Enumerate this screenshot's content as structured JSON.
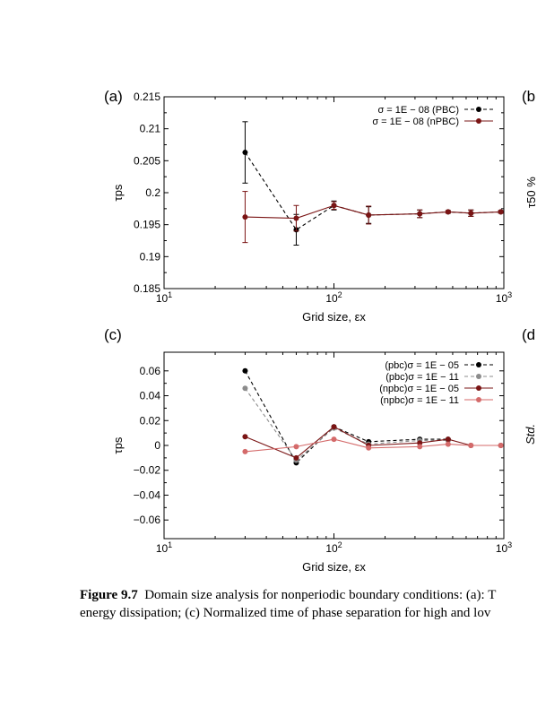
{
  "chart_data": [
    {
      "type": "line",
      "panel_label": "(a)",
      "xlabel": "Grid size, εx",
      "ylabel": "τps",
      "xscale": "log",
      "xlim": [
        10,
        1000
      ],
      "ylim": [
        0.185,
        0.215
      ],
      "yticks": [
        "0.185",
        "0.19",
        "0.195",
        "0.2",
        "0.205",
        "0.21",
        "0.215"
      ],
      "ytick_values": [
        0.185,
        0.19,
        0.195,
        0.2,
        0.205,
        0.21,
        0.215
      ],
      "xticks": [
        {
          "base": "10",
          "exp": "1"
        },
        {
          "base": "10",
          "exp": "2"
        },
        {
          "base": "10",
          "exp": "3"
        }
      ],
      "legend_position": "top-right",
      "series": [
        {
          "name": "σ = 1E − 08 (PBC)",
          "color": "#000000",
          "dashed": true,
          "x": [
            30,
            60,
            100,
            160,
            320,
            470,
            640,
            960
          ],
          "y": [
            0.2063,
            0.1942,
            0.198,
            0.1965,
            0.1967,
            0.197,
            0.1968,
            0.197
          ],
          "err": [
            0.0048,
            0.0024,
            0.0007,
            0.0013,
            0.0006,
            0.0002,
            0.0005,
            0.0002
          ]
        },
        {
          "name": "σ = 1E − 08 (nPBC)",
          "color": "#7a1414",
          "dashed": false,
          "x": [
            30,
            60,
            100,
            160,
            320,
            470,
            640,
            960
          ],
          "y": [
            0.1962,
            0.196,
            0.198,
            0.1965,
            0.1967,
            0.197,
            0.1968,
            0.197
          ],
          "err": [
            0.004,
            0.002,
            0.0006,
            0.0014,
            0.0006,
            0.0002,
            0.0005,
            0.0002
          ]
        }
      ]
    },
    {
      "type": "line",
      "panel_label": "(c)",
      "xlabel": "Grid size, εx",
      "ylabel": "τps",
      "xscale": "log",
      "xlim": [
        10,
        1000
      ],
      "ylim": [
        -0.075,
        0.075
      ],
      "yticks": [
        "0.06",
        "0.04",
        "0.02",
        "0",
        "−0.02",
        "−0.04",
        "−0.06"
      ],
      "ytick_values": [
        0.06,
        0.04,
        0.02,
        0,
        -0.02,
        -0.04,
        -0.06
      ],
      "xticks": [
        {
          "base": "10",
          "exp": "1"
        },
        {
          "base": "10",
          "exp": "2"
        },
        {
          "base": "10",
          "exp": "3"
        }
      ],
      "legend_position": "top-right",
      "series": [
        {
          "name": "(pbc)σ = 1E − 05",
          "color": "#000000",
          "dashed": true,
          "x": [
            30,
            60,
            100,
            160,
            320,
            470
          ],
          "y": [
            0.06,
            -0.014,
            0.015,
            0.003,
            0.005,
            0.005
          ]
        },
        {
          "name": "(pbc)σ = 1E − 11",
          "color": "#8c8c8c",
          "dashed": true,
          "x": [
            30,
            60,
            100,
            160,
            320,
            470
          ],
          "y": [
            0.046,
            -0.012,
            0.014,
            0.001,
            0.004,
            0.004
          ]
        },
        {
          "name": "(npbc)σ = 1E − 05",
          "color": "#7a1414",
          "dashed": false,
          "x": [
            30,
            60,
            100,
            160,
            320,
            470,
            640,
            960
          ],
          "y": [
            0.007,
            -0.01,
            0.015,
            0.0,
            0.002,
            0.005,
            0.0,
            0.0
          ]
        },
        {
          "name": "(npbc)σ = 1E − 11",
          "color": "#d46a6a",
          "dashed": false,
          "x": [
            30,
            60,
            100,
            160,
            320,
            470,
            640,
            960
          ],
          "y": [
            -0.005,
            -0.001,
            0.005,
            -0.002,
            -0.001,
            0.001,
            0.0,
            0.0
          ]
        }
      ]
    }
  ],
  "partial_labels": {
    "b_panel": "(b",
    "b_ylabel_fragment": "τ50 %",
    "d_panel": "(d",
    "d_ylabel_fragment": "Std."
  },
  "caption": {
    "figure_label": "Figure 9.7",
    "line1": "Domain size analysis for nonperiodic boundary conditions: (a): T",
    "line2": "energy dissipation; (c) Normalized time of phase separation for high and lov"
  }
}
